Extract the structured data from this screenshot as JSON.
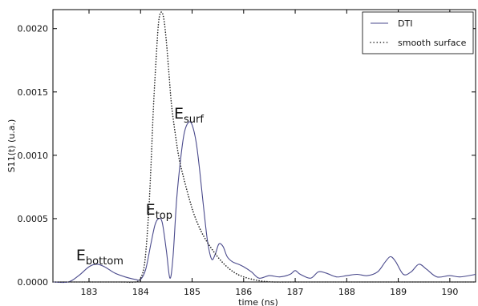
{
  "chart_data": {
    "type": "line",
    "xlabel": "time (ns)",
    "ylabel": "S11(t) (u.a.)",
    "xlim": [
      182.3,
      190.5
    ],
    "ylim": [
      0,
      0.00215
    ],
    "x_ticks": [
      {
        "value": 183,
        "label": "183"
      },
      {
        "value": 184,
        "label": "184"
      },
      {
        "value": 185,
        "label": "185"
      },
      {
        "value": 186,
        "label": "186"
      },
      {
        "value": 187,
        "label": "187"
      },
      {
        "value": 188,
        "label": "188"
      },
      {
        "value": 189,
        "label": "189"
      },
      {
        "value": 190,
        "label": "190"
      }
    ],
    "y_ticks": [
      {
        "value": 0,
        "label": "0.0000"
      },
      {
        "value": 0.0005,
        "label": "0.0005"
      },
      {
        "value": 0.001,
        "label": "0.0010"
      },
      {
        "value": 0.0015,
        "label": "0.0015"
      },
      {
        "value": 0.002,
        "label": "0.0020"
      }
    ],
    "grid": false,
    "legend_position": "top-right",
    "series": [
      {
        "name": "DTI",
        "style": "solid",
        "color": "#4a4a8c",
        "x": [
          182.3,
          182.6,
          182.8,
          183.0,
          183.15,
          183.3,
          183.5,
          183.7,
          183.9,
          184.0,
          184.1,
          184.2,
          184.28,
          184.35,
          184.42,
          184.5,
          184.57,
          184.63,
          184.7,
          184.78,
          184.85,
          184.93,
          185.0,
          185.08,
          185.15,
          185.22,
          185.3,
          185.38,
          185.45,
          185.52,
          185.6,
          185.68,
          185.78,
          185.9,
          186.0,
          186.15,
          186.3,
          186.5,
          186.7,
          186.9,
          187.0,
          187.1,
          187.3,
          187.45,
          187.6,
          187.8,
          188.0,
          188.2,
          188.4,
          188.6,
          188.75,
          188.85,
          188.95,
          189.1,
          189.25,
          189.4,
          189.55,
          189.75,
          190.0,
          190.2,
          190.5
        ],
        "y": [
          0.0,
          0.0,
          5e-05,
          0.00012,
          0.00014,
          0.00012,
          7e-05,
          4e-05,
          2e-05,
          2e-05,
          0.0001,
          0.0003,
          0.00045,
          0.0005,
          0.00047,
          0.00025,
          3e-05,
          0.0002,
          0.00065,
          0.00098,
          0.00118,
          0.00126,
          0.00124,
          0.0011,
          0.00087,
          0.0006,
          0.00032,
          0.00018,
          0.00022,
          0.0003,
          0.00028,
          0.0002,
          0.00016,
          0.00014,
          0.00012,
          8e-05,
          3e-05,
          5e-05,
          4e-05,
          6e-05,
          9e-05,
          6e-05,
          3e-05,
          8e-05,
          7e-05,
          4e-05,
          5e-05,
          6e-05,
          5e-05,
          8e-05,
          0.00016,
          0.0002,
          0.00016,
          6e-05,
          8e-05,
          0.00014,
          0.0001,
          4e-05,
          5e-05,
          4e-05,
          6e-05
        ]
      },
      {
        "name": "smooth surface",
        "style": "dotted",
        "color": "#222222",
        "x": [
          182.3,
          183.0,
          183.6,
          183.9,
          184.0,
          184.08,
          184.15,
          184.2,
          184.25,
          184.3,
          184.35,
          184.4,
          184.45,
          184.5,
          184.55,
          184.6,
          184.68,
          184.75,
          184.85,
          184.95,
          185.05,
          185.2,
          185.4,
          185.6,
          185.8,
          186.0,
          186.3,
          186.6,
          187.0,
          188.0,
          189.0,
          190.0,
          190.5
        ],
        "y": [
          0.0,
          0.0,
          0.0,
          0.0,
          3e-05,
          0.00015,
          0.0005,
          0.0009,
          0.00138,
          0.00175,
          0.00205,
          0.00213,
          0.00208,
          0.0019,
          0.00165,
          0.0014,
          0.00115,
          0.00097,
          0.0008,
          0.00065,
          0.00052,
          0.00038,
          0.00025,
          0.00015,
          8e-05,
          4e-05,
          1e-05,
          0.0,
          0.0,
          0.0,
          0.0,
          0.0,
          0.0
        ]
      }
    ],
    "annotations": [
      {
        "main": "E",
        "sub": "bottom",
        "x": 182.75,
        "y": 0.00017
      },
      {
        "main": "E",
        "sub": "top",
        "x": 184.1,
        "y": 0.00053
      },
      {
        "main": "E",
        "sub": "surf",
        "x": 184.65,
        "y": 0.00129
      }
    ]
  }
}
